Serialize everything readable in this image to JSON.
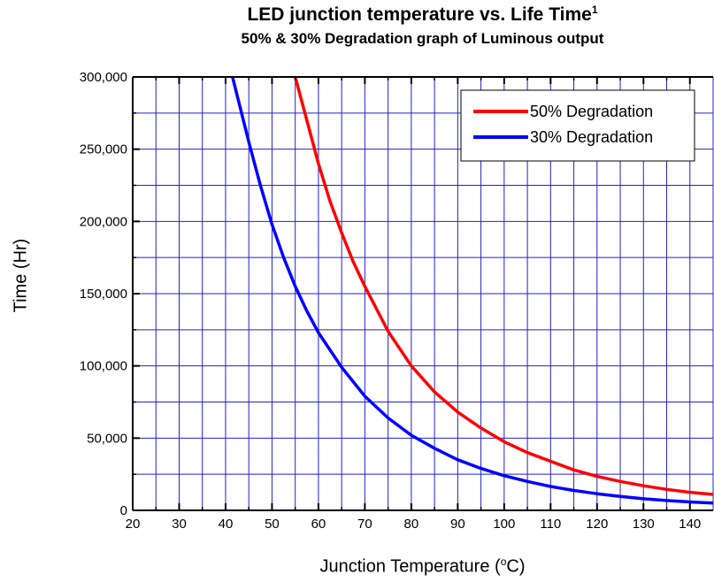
{
  "title": "LED junction temperature vs. Life Time",
  "title_superscript": "1",
  "subtitle": "50% & 30% Degradation graph of Luminous output",
  "chart_data": {
    "type": "line",
    "title": "LED junction temperature vs. Life Time",
    "subtitle": "50% & 30% Degradation graph of Luminous output",
    "xlabel_text": "Junction Temperature (",
    "xlabel_unit_sup": "o",
    "xlabel_unit": "C)",
    "ylabel": "Time (Hr)",
    "xlim": [
      20,
      145
    ],
    "ylim": [
      0,
      300000
    ],
    "x_ticks": [
      20,
      30,
      40,
      50,
      60,
      70,
      80,
      90,
      100,
      110,
      120,
      130,
      140
    ],
    "x_tick_labels": [
      "20",
      "30",
      "40",
      "50",
      "60",
      "70",
      "80",
      "90",
      "100",
      "110",
      "120",
      "130",
      "140"
    ],
    "y_ticks": [
      0,
      50000,
      100000,
      150000,
      200000,
      250000,
      300000
    ],
    "y_tick_labels": [
      "0",
      "50,000",
      "100,000",
      "150,000",
      "200,000",
      "250,000",
      "300,000"
    ],
    "grid": true,
    "grid_color": "#2222cc",
    "legend_position": "top-right",
    "series": [
      {
        "name": "50% Degradation",
        "color": "#ff0000",
        "points": [
          [
            55,
            300000
          ],
          [
            57.5,
            270000
          ],
          [
            60,
            240000
          ],
          [
            62.5,
            214000
          ],
          [
            65,
            192000
          ],
          [
            67.5,
            172000
          ],
          [
            70,
            155000
          ],
          [
            75,
            124000
          ],
          [
            80,
            100000
          ],
          [
            85,
            82000
          ],
          [
            90,
            68000
          ],
          [
            95,
            57000
          ],
          [
            100,
            47500
          ],
          [
            105,
            40000
          ],
          [
            110,
            34000
          ],
          [
            115,
            28000
          ],
          [
            120,
            23500
          ],
          [
            125,
            20000
          ],
          [
            130,
            17000
          ],
          [
            135,
            14500
          ],
          [
            140,
            12500
          ],
          [
            145,
            11000
          ]
        ]
      },
      {
        "name": "30% Degradation",
        "color": "#0000ff",
        "points": [
          [
            41.5,
            300000
          ],
          [
            45,
            255000
          ],
          [
            47.5,
            225000
          ],
          [
            50,
            198000
          ],
          [
            52.5,
            175000
          ],
          [
            55,
            155000
          ],
          [
            57.5,
            138000
          ],
          [
            60,
            123000
          ],
          [
            65,
            99000
          ],
          [
            70,
            79000
          ],
          [
            75,
            64000
          ],
          [
            80,
            52000
          ],
          [
            85,
            43000
          ],
          [
            90,
            35000
          ],
          [
            95,
            29000
          ],
          [
            100,
            24000
          ],
          [
            105,
            20000
          ],
          [
            110,
            16500
          ],
          [
            115,
            13800
          ],
          [
            120,
            11500
          ],
          [
            125,
            9600
          ],
          [
            130,
            8000
          ],
          [
            135,
            6800
          ],
          [
            140,
            5800
          ],
          [
            145,
            5000
          ]
        ]
      }
    ]
  }
}
